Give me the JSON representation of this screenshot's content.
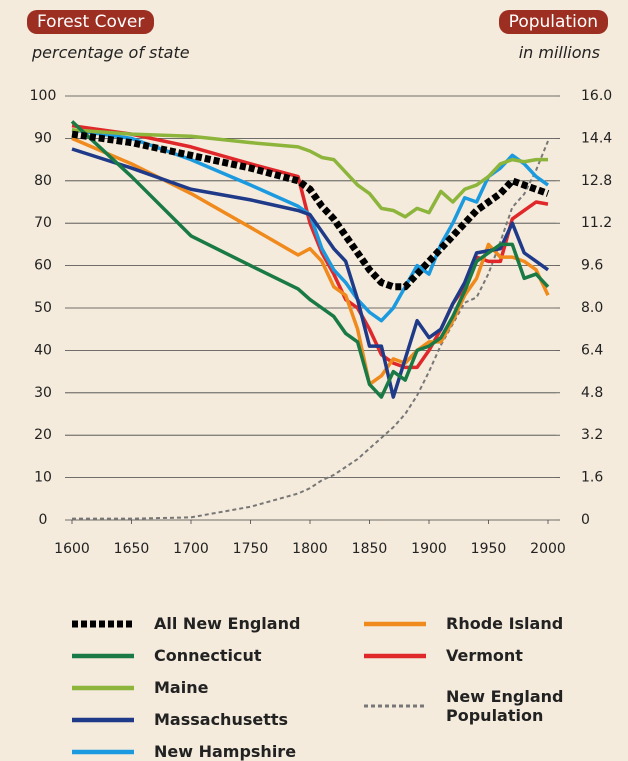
{
  "chart_data": {
    "type": "line",
    "ylabel": "Forest Cover",
    "ylabel_note": "percentage of state",
    "y2label": "Population",
    "y2label_note": "in millions",
    "x": [
      1600,
      1650,
      1700,
      1750,
      1790,
      1800,
      1810,
      1820,
      1830,
      1840,
      1850,
      1860,
      1870,
      1880,
      1890,
      1900,
      1910,
      1920,
      1930,
      1940,
      1950,
      1960,
      1970,
      1980,
      1990,
      2000
    ],
    "xlim": [
      1600,
      2000
    ],
    "xticks": [
      1600,
      1650,
      1700,
      1750,
      1800,
      1850,
      1900,
      1950,
      2000
    ],
    "ylim": [
      0,
      100
    ],
    "yticks": [
      0,
      10,
      20,
      30,
      40,
      50,
      60,
      70,
      80,
      90,
      100
    ],
    "y2lim": [
      0,
      16
    ],
    "y2ticks": [
      0,
      1.6,
      3.2,
      4.8,
      6.4,
      {
        "value": 8,
        "label": "8.0"
      },
      9.6,
      11.2,
      12.8,
      14.4,
      {
        "value": 16,
        "label": "16.0"
      }
    ],
    "grid": true,
    "series": [
      {
        "name": "All New England",
        "color": "#000000",
        "style": "dashed",
        "values": [
          91,
          89,
          86,
          83,
          80,
          78,
          74,
          71,
          67,
          63,
          59,
          56,
          55,
          55,
          58,
          61,
          64,
          67,
          70,
          73,
          75,
          77,
          80,
          79,
          78,
          77
        ]
      },
      {
        "name": "Connecticut",
        "color": "#1a7a45",
        "values": [
          94,
          81,
          67,
          60,
          54.5,
          52,
          50,
          48,
          44,
          42,
          32,
          29,
          35,
          33,
          40,
          41,
          43,
          48,
          54,
          61,
          63,
          65,
          65,
          57,
          58,
          55
        ]
      },
      {
        "name": "Maine",
        "color": "#8db53c",
        "values": [
          92,
          91,
          90.5,
          89,
          88,
          87,
          85.5,
          85,
          82,
          79,
          77,
          73.5,
          73,
          71.5,
          73.5,
          72.5,
          77.5,
          75,
          78,
          79,
          81,
          84,
          85,
          84.5,
          85,
          85
        ]
      },
      {
        "name": "Massachusetts",
        "color": "#1f3a88",
        "values": [
          87.5,
          83,
          78,
          75.5,
          73,
          72,
          68,
          64,
          61,
          52,
          41,
          41,
          29,
          38,
          47,
          43,
          45,
          51,
          56,
          63,
          63.5,
          64,
          70,
          63,
          61,
          59
        ]
      },
      {
        "name": "New Hampshire",
        "color": "#1c9ae0",
        "values": [
          92,
          90,
          85,
          79,
          74,
          72,
          64,
          59,
          56,
          52,
          49,
          47,
          50,
          55,
          60,
          58,
          65,
          70,
          76,
          75,
          81,
          83,
          86,
          84,
          81,
          79
        ]
      },
      {
        "name": "Rhode Island",
        "color": "#f08a1c",
        "values": [
          90,
          84,
          77,
          69,
          62.5,
          64,
          61,
          55,
          53,
          45,
          32,
          34,
          38,
          37,
          40,
          42,
          42,
          47,
          53,
          57,
          65,
          62,
          62,
          61,
          59,
          53
        ]
      },
      {
        "name": "Vermont",
        "color": "#e0282a",
        "values": [
          93,
          91,
          88,
          84,
          81,
          70,
          63,
          58,
          52,
          50,
          45,
          39,
          37,
          36,
          36,
          40,
          45,
          51,
          55,
          62,
          61,
          61,
          71,
          73,
          75,
          74.5
        ]
      },
      {
        "name": "New England Population",
        "color": "#777777",
        "style": "dashed",
        "axis": "y2",
        "values": [
          0.05,
          0.05,
          0.1,
          0.5,
          1.0,
          1.2,
          1.5,
          1.7,
          2.0,
          2.3,
          2.7,
          3.1,
          3.5,
          4.0,
          4.7,
          5.6,
          6.6,
          7.4,
          8.2,
          8.4,
          9.3,
          10.5,
          11.8,
          12.3,
          13.2,
          14.3
        ]
      }
    ]
  }
}
